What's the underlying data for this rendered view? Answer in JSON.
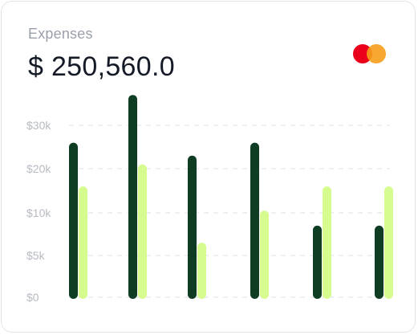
{
  "card": {
    "title": "Expenses",
    "amount": "$ 250,560.0"
  },
  "icons": {
    "brand": "mastercard-icon"
  },
  "colors": {
    "primary_bar": "#0f3d24",
    "secondary_bar": "#d6fb8e",
    "brand_left": "#eb001b",
    "brand_right": "#f79e1b",
    "grid": "#e8eaee",
    "tick": "#b6bac2"
  },
  "chart_data": {
    "type": "bar",
    "title": "",
    "xlabel": "",
    "ylabel": "",
    "y_ticks": [
      "$0",
      "$5k",
      "$10k",
      "$20k",
      "$30k"
    ],
    "grid": true,
    "series": [
      {
        "values": [
          26,
          37,
          23,
          26,
          8.5,
          8.5
        ]
      },
      {
        "values": [
          16,
          21,
          6.5,
          10.5,
          16,
          16
        ]
      }
    ]
  }
}
